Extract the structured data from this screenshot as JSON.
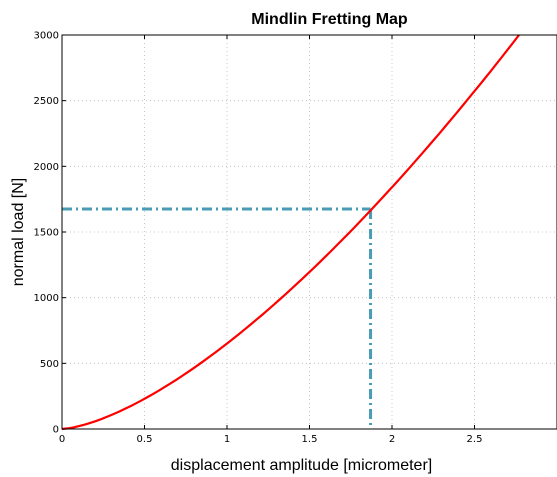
{
  "chart_data": {
    "type": "line",
    "title": "Mindlin Fretting Map",
    "xlabel": "displacement amplitude [micrometer]",
    "ylabel": "normal load [N]",
    "xlim": [
      0,
      3
    ],
    "ylim": [
      0,
      3000
    ],
    "x_ticks": [
      "0",
      "0.5",
      "1",
      "1.5",
      "2",
      "2.5"
    ],
    "y_ticks": [
      "0",
      "500",
      "1000",
      "1500",
      "2000",
      "2500",
      "3000"
    ],
    "grid": true,
    "series": [
      {
        "color": "#ff0000",
        "style": "solid",
        "x": [
          0,
          0.25,
          0.5,
          0.75,
          1.0,
          1.25,
          1.5,
          1.75,
          2.0,
          2.25,
          2.5,
          2.75,
          2.77
        ],
        "y": [
          0,
          85,
          240,
          440,
          680,
          950,
          1250,
          1570,
          1910,
          2280,
          2670,
          3070,
          3000
        ]
      }
    ],
    "reference_lines": {
      "color": "#4a9bb5",
      "style": "dash-dot",
      "point": {
        "x": 1.87,
        "y": 1675
      }
    }
  }
}
